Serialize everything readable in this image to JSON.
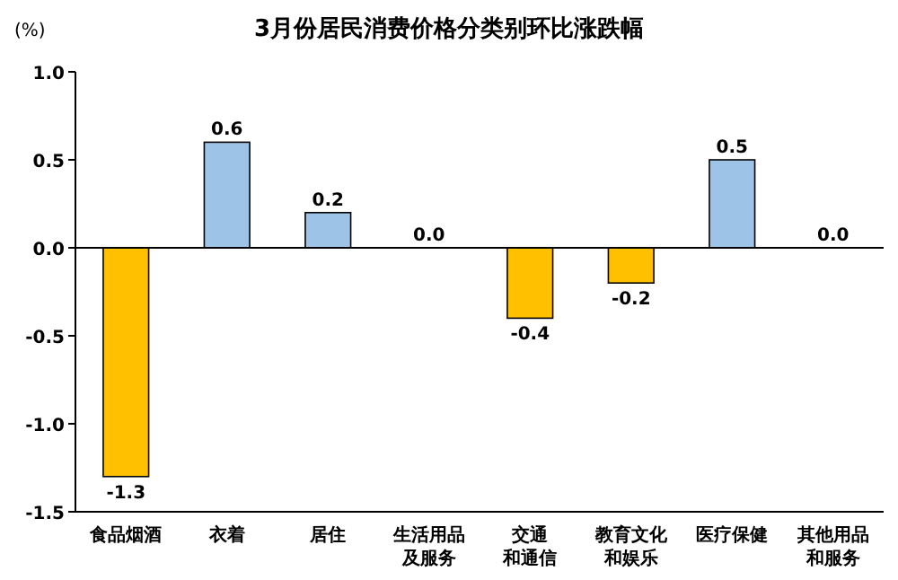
{
  "chart_data": {
    "type": "bar",
    "title": "3月份居民消费价格分类别环比涨跌幅",
    "ylabel": "(%)",
    "categories": [
      "食品烟酒",
      "衣着",
      "居住",
      "生活用品及服务",
      "交通和通信",
      "教育文化和娱乐",
      "医疗保健",
      "其他用品和服务"
    ],
    "values": [
      -1.3,
      0.6,
      0.2,
      0.0,
      -0.4,
      -0.2,
      0.5,
      0.0
    ],
    "colors": [
      "#ffc000",
      "#9dc3e6",
      "#9dc3e6",
      "#9dc3e6",
      "#ffc000",
      "#ffc000",
      "#9dc3e6",
      "#9dc3e6"
    ],
    "value_labels": [
      "-1.3",
      "0.6",
      "0.2",
      "0.0",
      "-0.4",
      "-0.2",
      "0.5",
      "0.0"
    ],
    "ylim": [
      -1.5,
      1.0
    ],
    "yticks": [
      {
        "value": 1.0,
        "label": "1.0"
      },
      {
        "value": 0.5,
        "label": "0.5"
      },
      {
        "value": 0.0,
        "label": "0.0"
      },
      {
        "value": -0.5,
        "label": "-0.5"
      },
      {
        "value": -1.0,
        "label": "-1.0"
      },
      {
        "value": -1.5,
        "label": "-1.5"
      }
    ],
    "ref_lines": [
      {
        "axis": "y",
        "value": 0,
        "color": "#000000"
      }
    ],
    "grid": false
  }
}
